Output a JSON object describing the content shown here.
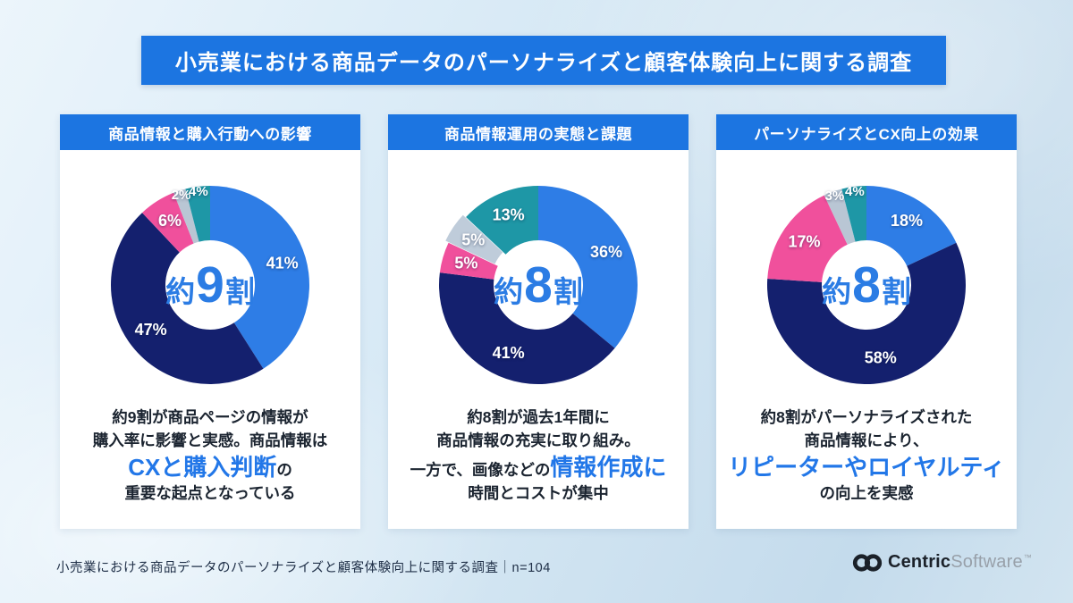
{
  "header": {
    "title": "小売業における商品データのパーソナライズと顧客体験向上に関する調査"
  },
  "panels": [
    {
      "header": "商品情報と購入行動への影響",
      "center": {
        "prefix": "約",
        "big": "9",
        "suffix": "割"
      },
      "description": [
        [
          {
            "t": "約9割が商品ページの情報が"
          }
        ],
        [
          {
            "t": "購入率に影響と実感。商品情報は"
          }
        ],
        [
          {
            "t": "CXと購入判断",
            "em": true
          },
          {
            "t": "の"
          }
        ],
        [
          {
            "t": "重要な起点となっている"
          }
        ]
      ]
    },
    {
      "header": "商品情報運用の実態と課題",
      "center": {
        "prefix": "約",
        "big": "8",
        "suffix": "割"
      },
      "description": [
        [
          {
            "t": "約8割が過去1年間に"
          }
        ],
        [
          {
            "t": "商品情報の充実に取り組み。"
          }
        ],
        [
          {
            "t": "一方で、画像などの"
          },
          {
            "t": "情報作成に",
            "em": true
          }
        ],
        [
          {
            "t": "時間とコストが集中"
          }
        ]
      ]
    },
    {
      "header": "パーソナライズとCX向上の効果",
      "center": {
        "prefix": "約",
        "big": "8",
        "suffix": "割"
      },
      "description": [
        [
          {
            "t": "約8割がパーソナライズされた"
          }
        ],
        [
          {
            "t": "商品情報により、"
          }
        ],
        [
          {
            "t": "リピーターやロイヤルティ",
            "em": true
          }
        ],
        [
          {
            "t": "の向上を実感"
          }
        ]
      ]
    }
  ],
  "chart_data": [
    {
      "type": "pie",
      "subtype": "donut",
      "title": "商品情報と購入行動への影響",
      "center_text": "約9割",
      "labels": [
        "41%",
        "47%",
        "6%",
        "2%",
        "4%"
      ],
      "values": [
        41,
        47,
        6,
        2,
        4
      ],
      "colors": [
        "#2e7de6",
        "#14206e",
        "#f0509c",
        "#b9c6d4",
        "#1e97a6"
      ],
      "start_angle_deg": 0,
      "clockwise": true
    },
    {
      "type": "pie",
      "subtype": "donut",
      "title": "商品情報運用の実態と課題",
      "center_text": "約8割",
      "labels": [
        "36%",
        "41%",
        "5%",
        "5%",
        "13%"
      ],
      "values": [
        36,
        41,
        5,
        5,
        13
      ],
      "colors": [
        "#2e7de6",
        "#14206e",
        "#f0509c",
        "#bfccda",
        "#1e97a6"
      ],
      "start_angle_deg": 0,
      "clockwise": true,
      "explode_index": 3
    },
    {
      "type": "pie",
      "subtype": "donut",
      "title": "パーソナライズとCX向上の効果",
      "center_text": "約8割",
      "labels": [
        "18%",
        "58%",
        "17%",
        "3%",
        "4%"
      ],
      "values": [
        18,
        58,
        17,
        3,
        4
      ],
      "colors": [
        "#2e7de6",
        "#14206e",
        "#f0509c",
        "#b9c6d4",
        "#1e97a6"
      ],
      "start_angle_deg": 0,
      "clockwise": true
    }
  ],
  "footer": {
    "source": "小売業における商品データのパーソナライズと顧客体験向上に関する調査｜n=104",
    "logo": {
      "bold": "Centric",
      "light": "Software",
      "tm": "™"
    }
  },
  "colors": {
    "banner_blue": "#1c75e1",
    "panel_header_blue": "#1c75e1",
    "emphasis_blue": "#2277e8",
    "center_text_blue": "#2b7ce4",
    "segment_lightblue": "#2e7de6",
    "segment_navy": "#14206e",
    "segment_pink": "#f0509c",
    "segment_gray": "#b9c6d4",
    "segment_teal": "#1e97a6",
    "background_light": "#ddedf8",
    "card_white": "#ffffff"
  }
}
